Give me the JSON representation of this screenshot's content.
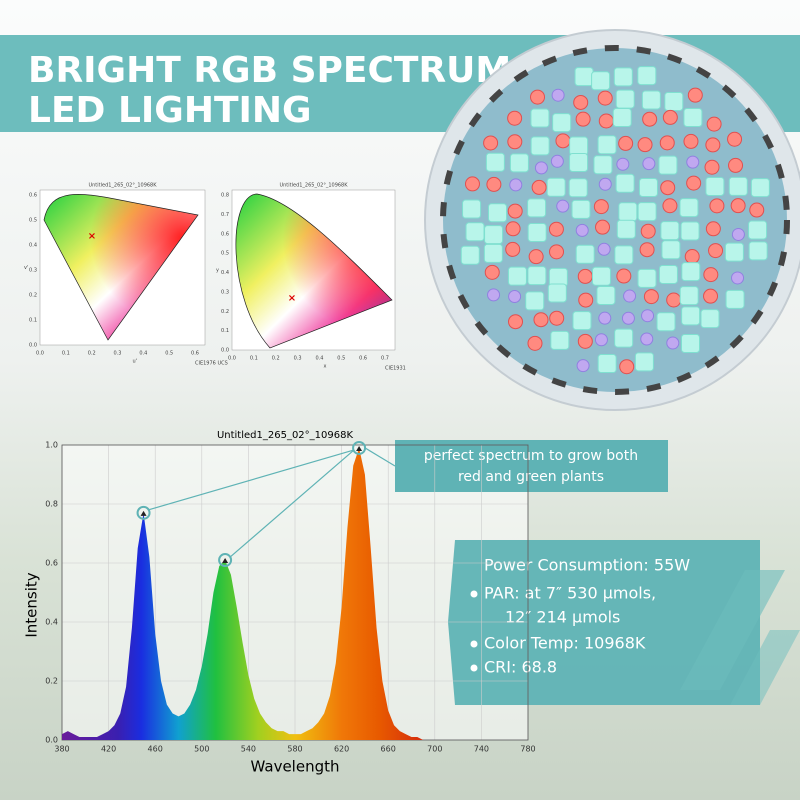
{
  "header": {
    "lines": [
      "BRIGHT RGB SPECTRUM",
      "LED LIGHTING"
    ]
  },
  "cie_charts": [
    {
      "title": "Untitled1_265_02°_10968K",
      "x_label": "u'",
      "y_label": "v'",
      "caption": "CIE1976 UCS",
      "xticks": [
        "0.0",
        "0.1",
        "0.2",
        "0.3",
        "0.4",
        "0.5",
        "0.6"
      ],
      "yticks": [
        "0.0",
        "0.1",
        "0.2",
        "0.3",
        "0.4",
        "0.5",
        "0.6"
      ]
    },
    {
      "title": "Untitled1_265_02°_10968K",
      "x_label": "x",
      "y_label": "y",
      "caption": "CIE1931",
      "xticks": [
        "0.0",
        "0.1",
        "0.2",
        "0.3",
        "0.4",
        "0.5",
        "0.6",
        "0.7"
      ],
      "yticks": [
        "0.0",
        "0.1",
        "0.2",
        "0.3",
        "0.4",
        "0.5",
        "0.6",
        "0.7",
        "0.8"
      ]
    }
  ],
  "chart_data": {
    "type": "area",
    "title": "Untitled1_265_02°_10968K",
    "x_label": "Wavelength",
    "y_label": "Intensity",
    "x": [
      380,
      385,
      390,
      395,
      400,
      405,
      410,
      415,
      420,
      425,
      430,
      435,
      440,
      445,
      450,
      455,
      460,
      465,
      470,
      475,
      480,
      485,
      490,
      495,
      500,
      505,
      510,
      515,
      520,
      525,
      530,
      535,
      540,
      545,
      550,
      555,
      560,
      565,
      570,
      575,
      580,
      585,
      590,
      595,
      600,
      605,
      610,
      615,
      620,
      625,
      630,
      635,
      640,
      645,
      650,
      655,
      660,
      665,
      670,
      675,
      680,
      685,
      690,
      695,
      700,
      705,
      710,
      715,
      720,
      725,
      730,
      735,
      740,
      745,
      750,
      755,
      760,
      765,
      770,
      775,
      780
    ],
    "values": [
      0.02,
      0.03,
      0.02,
      0.01,
      0.01,
      0.01,
      0.01,
      0.02,
      0.03,
      0.05,
      0.09,
      0.18,
      0.38,
      0.65,
      0.77,
      0.62,
      0.36,
      0.2,
      0.12,
      0.09,
      0.08,
      0.09,
      0.12,
      0.17,
      0.25,
      0.36,
      0.5,
      0.59,
      0.61,
      0.56,
      0.45,
      0.33,
      0.22,
      0.14,
      0.09,
      0.06,
      0.04,
      0.03,
      0.03,
      0.02,
      0.02,
      0.02,
      0.03,
      0.04,
      0.06,
      0.09,
      0.15,
      0.26,
      0.45,
      0.72,
      0.93,
      0.99,
      0.9,
      0.65,
      0.38,
      0.2,
      0.1,
      0.05,
      0.03,
      0.02,
      0.01,
      0.01,
      0,
      0,
      0,
      0,
      0,
      0,
      0,
      0,
      0,
      0,
      0,
      0,
      0,
      0,
      0,
      0,
      0,
      0,
      0
    ],
    "xlim": [
      380,
      780
    ],
    "xticks": [
      380,
      420,
      460,
      500,
      540,
      580,
      620,
      660,
      700,
      740,
      780
    ],
    "ylim": [
      0,
      1
    ],
    "yticks": [
      {
        "value": 0,
        "label": "0.0"
      },
      0.2,
      0.4,
      0.6,
      0.8,
      {
        "value": 1,
        "label": "1.0"
      }
    ],
    "grid": true,
    "annotation": [
      "perfect spectrum to grow both",
      "red and green plants"
    ]
  },
  "specs": {
    "heading": "Power Consumption: 55W",
    "items": [
      "PAR: at 7″ 530 μmols,",
      "Color Temp: 10968K",
      "CRI: 68.8"
    ],
    "continuation": "12″ 214 μmols"
  }
}
